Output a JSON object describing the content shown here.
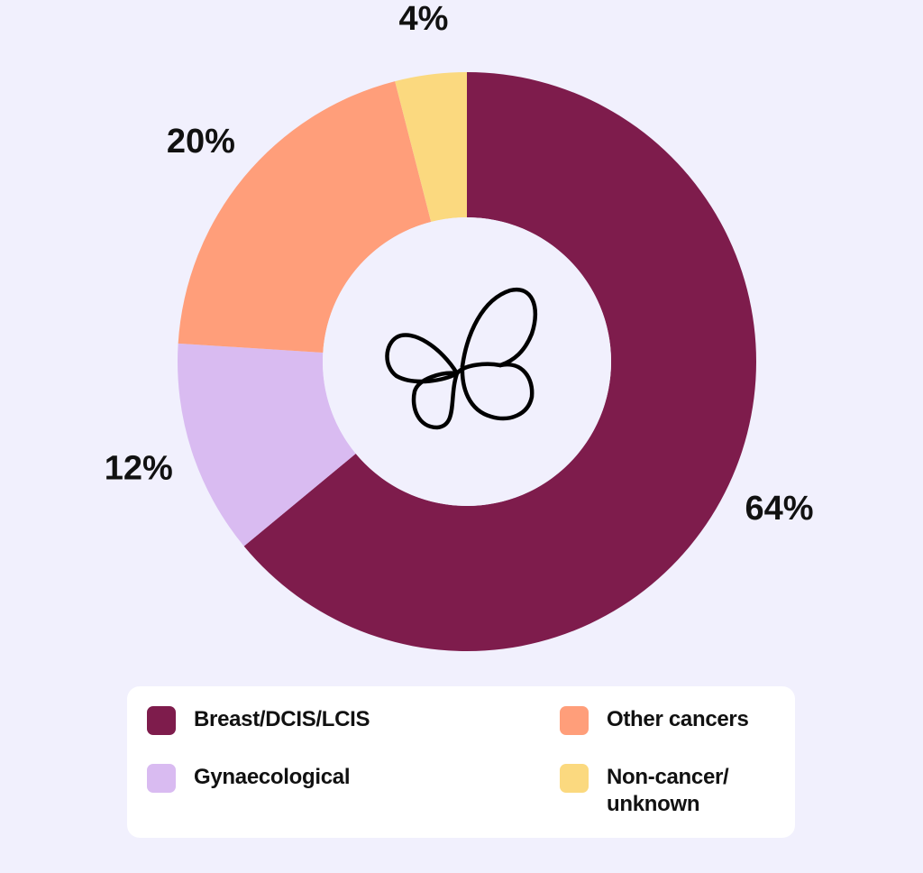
{
  "chart_data": {
    "type": "pie",
    "style": "donut",
    "slices": [
      {
        "label": "Breast/DCIS/LCIS",
        "value": 64,
        "value_label": "64%",
        "color": "#7e1c4c"
      },
      {
        "label": "Gynaecological",
        "value": 12,
        "value_label": "12%",
        "color": "#d9bbf1"
      },
      {
        "label": "Other cancers",
        "value": 20,
        "value_label": "20%",
        "color": "#ff9e7a"
      },
      {
        "label": "Non-cancer/\nunknown",
        "value": 4,
        "value_label": "4%",
        "color": "#fbd97f"
      }
    ],
    "legend_position": "bottom",
    "center_icon": "butterfly-icon"
  },
  "legend": {
    "items": [
      {
        "label": "Breast/DCIS/LCIS",
        "color": "#7e1c4c"
      },
      {
        "label": "Other cancers",
        "color": "#ff9e7a"
      },
      {
        "label": "Gynaecological",
        "color": "#d9bbf1"
      },
      {
        "label": "Non-cancer/\nunknown",
        "color": "#fbd97f"
      }
    ]
  },
  "colors": {
    "background": "#f1f0fd",
    "legend_background": "#ffffff",
    "text": "#111111"
  }
}
